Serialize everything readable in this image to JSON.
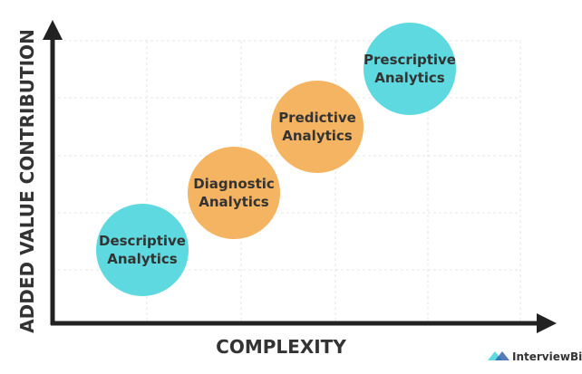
{
  "axes": {
    "x_label": "COMPLEXITY",
    "y_label": "ADDED VALUE CONTRIBUTION"
  },
  "nodes": [
    {
      "lines": [
        "Descriptive",
        "Analytics"
      ]
    },
    {
      "lines": [
        "Diagnostic",
        "Analytics"
      ]
    },
    {
      "lines": [
        "Predictive",
        "Analytics"
      ]
    },
    {
      "lines": [
        "Prescriptive",
        "Analytics"
      ]
    }
  ],
  "logo": "InterviewBit"
}
